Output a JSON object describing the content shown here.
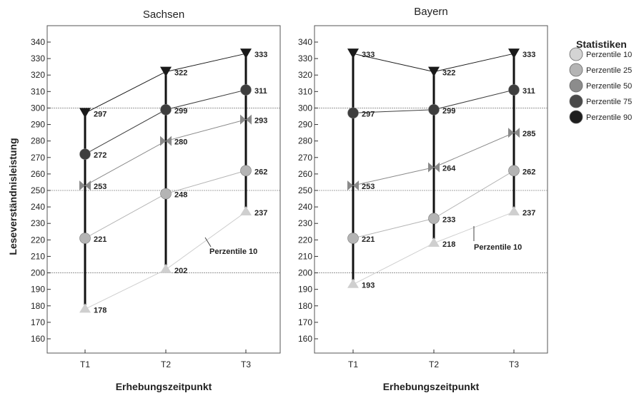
{
  "chart_data": [
    {
      "type": "line",
      "title": "Sachsen",
      "xlabel": "Erhebungszeitpunkt",
      "ylabel": "Leseverständnisleistung",
      "ylim": [
        155,
        345
      ],
      "yticks": [
        160,
        170,
        180,
        190,
        200,
        210,
        220,
        230,
        240,
        250,
        260,
        270,
        280,
        290,
        300,
        310,
        320,
        330,
        340
      ],
      "reference_lines": [
        200,
        250,
        300
      ],
      "categories": [
        "T1",
        "T2",
        "T3"
      ],
      "series": [
        {
          "name": "Perzentile 10",
          "values": [
            178,
            202,
            237
          ],
          "marker": "triangle-up",
          "color": "#cfcfcf"
        },
        {
          "name": "Perzentile 25",
          "values": [
            221,
            248,
            262
          ],
          "marker": "circle",
          "color": "#b4b4b4"
        },
        {
          "name": "Perzentile 50",
          "values": [
            253,
            280,
            293
          ],
          "marker": "bowtie",
          "color": "#8a8a8a"
        },
        {
          "name": "Perzentile 75",
          "values": [
            272,
            299,
            311
          ],
          "marker": "circle",
          "color": "#3e3e3e"
        },
        {
          "name": "Perzentile 90",
          "values": [
            297,
            322,
            333
          ],
          "marker": "triangle-down",
          "color": "#1a1a1a"
        }
      ],
      "annotation": "Perzentile 10"
    },
    {
      "type": "line",
      "title": "Bayern",
      "xlabel": "Erhebungszeitpunkt",
      "ylabel": "",
      "ylim": [
        155,
        345
      ],
      "yticks": [
        160,
        170,
        180,
        190,
        200,
        210,
        220,
        230,
        240,
        250,
        260,
        270,
        280,
        290,
        300,
        310,
        320,
        330,
        340
      ],
      "reference_lines": [
        200,
        250,
        300
      ],
      "categories": [
        "T1",
        "T2",
        "T3"
      ],
      "series": [
        {
          "name": "Perzentile 10",
          "values": [
            193,
            218,
            237
          ],
          "marker": "triangle-up",
          "color": "#cfcfcf"
        },
        {
          "name": "Perzentile 25",
          "values": [
            221,
            233,
            262
          ],
          "marker": "circle",
          "color": "#b4b4b4"
        },
        {
          "name": "Perzentile 50",
          "values": [
            253,
            264,
            285
          ],
          "marker": "bowtie",
          "color": "#8a8a8a"
        },
        {
          "name": "Perzentile 75",
          "values": [
            297,
            299,
            311
          ],
          "marker": "circle",
          "color": "#3e3e3e"
        },
        {
          "name": "Perzentile 90",
          "values": [
            333,
            322,
            333
          ],
          "marker": "triangle-down",
          "color": "#1a1a1a"
        }
      ],
      "annotation": "Perzentile 10"
    }
  ],
  "legend": {
    "title": "Statistiken",
    "position": "right",
    "items": [
      {
        "label": "Perzentile 10",
        "color": "#d4d4d4"
      },
      {
        "label": "Perzentile 25",
        "color": "#b4b4b4"
      },
      {
        "label": "Perzentile 50",
        "color": "#8c8c8c"
      },
      {
        "label": "Perzentile 75",
        "color": "#4a4a4a"
      },
      {
        "label": "Perzentile 90",
        "color": "#1e1e1e"
      }
    ]
  }
}
